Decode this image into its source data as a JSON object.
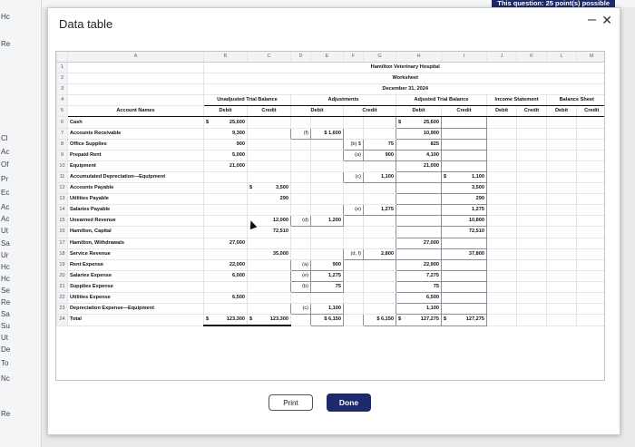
{
  "background": {
    "question_banner": "This question: 25 point(s) possible",
    "side_labels": [
      "Hc",
      "Re",
      "Cl",
      "Ac",
      "Of",
      "Pr",
      "Ec",
      "Ac",
      "Ac",
      "Ut",
      "Sa",
      "Ur",
      "Hc",
      "Hc",
      "Se",
      "Re",
      "Sa",
      "Su",
      "Ut",
      "De",
      "To",
      "Nc",
      "Re"
    ]
  },
  "modal": {
    "title": "Data table",
    "minimize_icon": "minimize-icon",
    "close_icon": "close-icon",
    "print_label": "Print",
    "done_label": "Done"
  },
  "sheet": {
    "columns": [
      "",
      "A",
      "B",
      "C",
      "D",
      "E",
      "F",
      "G",
      "H",
      "I",
      "J",
      "K",
      "L",
      "M"
    ],
    "company": "Hamilton Veterinary Hospital",
    "report": "Worksheet",
    "date": "December 31, 2024",
    "group_headers": {
      "unadjusted": "Unadjusted Trial Balance",
      "adjustments": "Adjustments",
      "adjusted": "Adjusted Trial Balance",
      "income": "Income Statement",
      "balance": "Balance Sheet"
    },
    "sub_headers": {
      "account_names": "Account Names",
      "debit": "Debit",
      "credit": "Credit"
    },
    "rows": [
      {
        "n": "6",
        "name": "Cash",
        "b_cur": "$",
        "b": "25,600",
        "c_cur": "",
        "c": "",
        "d_ref": "",
        "e": "",
        "f_ref": "",
        "g": "",
        "h_cur": "$",
        "h": "25,600",
        "i_cur": "",
        "i": ""
      },
      {
        "n": "7",
        "name": "Accounts Receivable",
        "b_cur": "",
        "b": "9,300",
        "c_cur": "",
        "c": "",
        "d_ref": "(f)",
        "e": "$ 1,600",
        "f_ref": "",
        "g": "",
        "h_cur": "",
        "h": "10,900",
        "i_cur": "",
        "i": ""
      },
      {
        "n": "8",
        "name": "Office Supplies",
        "b_cur": "",
        "b": "900",
        "c_cur": "",
        "c": "",
        "d_ref": "",
        "e": "",
        "f_ref": "(b) $",
        "g": "75",
        "h_cur": "",
        "h": "825",
        "i_cur": "",
        "i": ""
      },
      {
        "n": "9",
        "name": "Prepaid Rent",
        "b_cur": "",
        "b": "5,000",
        "c_cur": "",
        "c": "",
        "d_ref": "",
        "e": "",
        "f_ref": "(a)",
        "g": "900",
        "h_cur": "",
        "h": "4,100",
        "i_cur": "",
        "i": ""
      },
      {
        "n": "10",
        "name": "Equipment",
        "b_cur": "",
        "b": "21,000",
        "c_cur": "",
        "c": "",
        "d_ref": "",
        "e": "",
        "f_ref": "",
        "g": "",
        "h_cur": "",
        "h": "21,000",
        "i_cur": "",
        "i": ""
      },
      {
        "n": "11",
        "name": "Accumulated Depreciation—Equipment",
        "b_cur": "",
        "b": "",
        "c_cur": "",
        "c": "",
        "d_ref": "",
        "e": "",
        "f_ref": "(c)",
        "g": "1,100",
        "h_cur": "",
        "h": "",
        "i_cur": "$",
        "i": "1,100"
      },
      {
        "n": "12",
        "name": "Accounts Payable",
        "b_cur": "",
        "b": "",
        "c_cur": "$",
        "c": "3,500",
        "d_ref": "",
        "e": "",
        "f_ref": "",
        "g": "",
        "h_cur": "",
        "h": "",
        "i_cur": "",
        "i": "3,500"
      },
      {
        "n": "13",
        "name": "Utilities Payable",
        "b_cur": "",
        "b": "",
        "c_cur": "",
        "c": "290",
        "d_ref": "",
        "e": "",
        "f_ref": "",
        "g": "",
        "h_cur": "",
        "h": "",
        "i_cur": "",
        "i": "290"
      },
      {
        "n": "14",
        "name": "Salaries Payable",
        "b_cur": "",
        "b": "",
        "c_cur": "",
        "c": "",
        "d_ref": "",
        "e": "",
        "f_ref": "(e)",
        "g": "1,275",
        "h_cur": "",
        "h": "",
        "i_cur": "",
        "i": "1,275"
      },
      {
        "n": "15",
        "name": "Unearned Revenue",
        "b_cur": "",
        "b": "",
        "c_cur": "",
        "c": "12,000",
        "d_ref": "(d)",
        "e": "1,200",
        "f_ref": "",
        "g": "",
        "h_cur": "",
        "h": "",
        "i_cur": "",
        "i": "10,800"
      },
      {
        "n": "16",
        "name": "Hamilton, Capital",
        "b_cur": "",
        "b": "",
        "c_cur": "",
        "c": "72,510",
        "d_ref": "",
        "e": "",
        "f_ref": "",
        "g": "",
        "h_cur": "",
        "h": "",
        "i_cur": "",
        "i": "72,510"
      },
      {
        "n": "17",
        "name": "Hamilton, Withdrawals",
        "b_cur": "",
        "b": "27,000",
        "c_cur": "",
        "c": "",
        "d_ref": "",
        "e": "",
        "f_ref": "",
        "g": "",
        "h_cur": "",
        "h": "27,000",
        "i_cur": "",
        "i": ""
      },
      {
        "n": "18",
        "name": "Service Revenue",
        "b_cur": "",
        "b": "",
        "c_cur": "",
        "c": "35,000",
        "d_ref": "",
        "e": "",
        "f_ref": "(d, f)",
        "g": "2,800",
        "h_cur": "",
        "h": "",
        "i_cur": "",
        "i": "37,800"
      },
      {
        "n": "19",
        "name": "Rent Expense",
        "b_cur": "",
        "b": "22,000",
        "c_cur": "",
        "c": "",
        "d_ref": "(a)",
        "e": "900",
        "f_ref": "",
        "g": "",
        "h_cur": "",
        "h": "22,900",
        "i_cur": "",
        "i": ""
      },
      {
        "n": "20",
        "name": "Salaries Expense",
        "b_cur": "",
        "b": "6,000",
        "c_cur": "",
        "c": "",
        "d_ref": "(e)",
        "e": "1,275",
        "f_ref": "",
        "g": "",
        "h_cur": "",
        "h": "7,275",
        "i_cur": "",
        "i": ""
      },
      {
        "n": "21",
        "name": "Supplies Expense",
        "b_cur": "",
        "b": "",
        "c_cur": "",
        "c": "",
        "d_ref": "(b)",
        "e": "75",
        "f_ref": "",
        "g": "",
        "h_cur": "",
        "h": "75",
        "i_cur": "",
        "i": ""
      },
      {
        "n": "22",
        "name": "Utilities Expense",
        "b_cur": "",
        "b": "6,500",
        "c_cur": "",
        "c": "",
        "d_ref": "",
        "e": "",
        "f_ref": "",
        "g": "",
        "h_cur": "",
        "h": "6,500",
        "i_cur": "",
        "i": ""
      },
      {
        "n": "23",
        "name": "Depreciation Expense—Equipment",
        "b_cur": "",
        "b": "",
        "c_cur": "",
        "c": "",
        "d_ref": "(c)",
        "e": "1,100",
        "f_ref": "",
        "g": "",
        "h_cur": "",
        "h": "1,100",
        "i_cur": "",
        "i": ""
      },
      {
        "n": "24",
        "name": "Total",
        "b_cur": "$",
        "b": "123,300",
        "c_cur": "$",
        "c": "123,300",
        "d_ref": "",
        "e": "$ 6,150",
        "f_ref": "",
        "g": "$ 6,150",
        "h_cur": "$",
        "h": "127,275",
        "i_cur": "$",
        "i": "127,275"
      }
    ]
  }
}
